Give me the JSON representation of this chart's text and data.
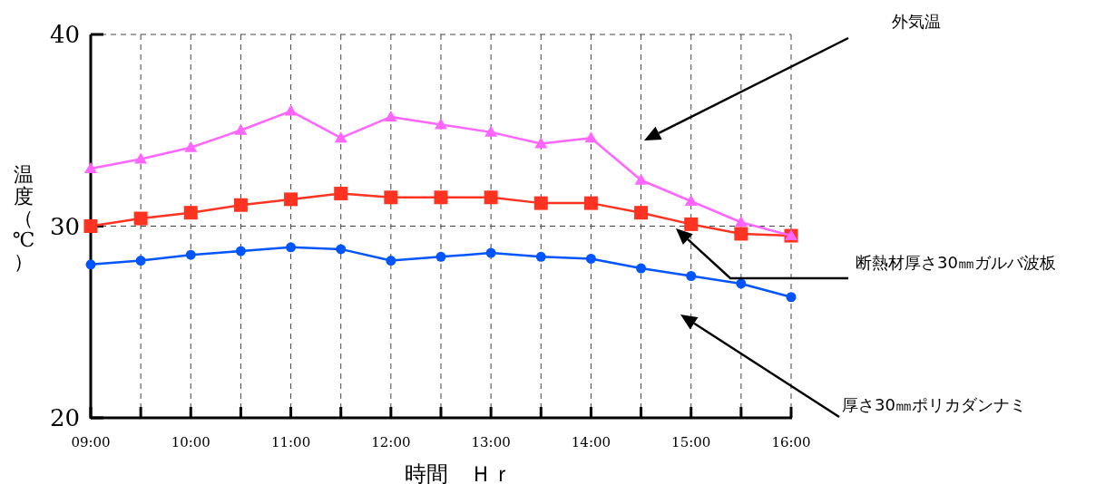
{
  "chart_data": {
    "type": "line",
    "xlabel": "時間　Ｈｒ",
    "ylabel": "温度（℃）",
    "x": [
      9,
      9.5,
      10,
      10.5,
      11,
      11.5,
      12,
      12.5,
      13,
      13.5,
      14,
      14.5,
      15,
      15.5,
      16
    ],
    "xlim": [
      9,
      16
    ],
    "ylim": [
      20,
      40
    ],
    "yticks": [
      20,
      30,
      40
    ],
    "xticks": [
      {
        "value": 9,
        "label": "09:00"
      },
      {
        "value": 9.5,
        "label": null
      },
      {
        "value": 10,
        "label": "10:00"
      },
      {
        "value": 10.5,
        "label": null
      },
      {
        "value": 11,
        "label": "11:00"
      },
      {
        "value": 11.5,
        "label": null
      },
      {
        "value": 12,
        "label": "12:00"
      },
      {
        "value": 12.5,
        "label": null
      },
      {
        "value": 13,
        "label": "13:00"
      },
      {
        "value": 13.5,
        "label": null
      },
      {
        "value": 14,
        "label": "14:00"
      },
      {
        "value": 14.5,
        "label": null
      },
      {
        "value": 15,
        "label": "15:00"
      },
      {
        "value": 15.5,
        "label": null
      },
      {
        "value": 16,
        "label": "16:00"
      }
    ],
    "grid": true,
    "line_style": "solid",
    "series": [
      {
        "name": "外気温",
        "color": "#ff66ff",
        "marker": "triangle",
        "values": [
          33.0,
          33.5,
          34.1,
          35.0,
          36.0,
          34.6,
          35.7,
          35.3,
          34.9,
          34.3,
          34.6,
          32.4,
          31.3,
          30.2,
          29.5
        ]
      },
      {
        "name": "断熱材厚さ30㎜ガルバ波板",
        "color": "#ff3322",
        "marker": "square",
        "values": [
          30.0,
          30.4,
          30.7,
          31.1,
          31.4,
          31.7,
          31.5,
          31.5,
          31.5,
          31.2,
          31.2,
          30.7,
          30.1,
          29.6,
          29.5
        ]
      },
      {
        "name": "厚さ30㎜ポリカダンナミ",
        "color": "#0055ff",
        "marker": "circle",
        "values": [
          28.0,
          28.2,
          28.5,
          28.7,
          28.9,
          28.8,
          28.2,
          28.4,
          28.6,
          28.4,
          28.3,
          27.8,
          27.4,
          27.0,
          26.3
        ]
      }
    ]
  }
}
